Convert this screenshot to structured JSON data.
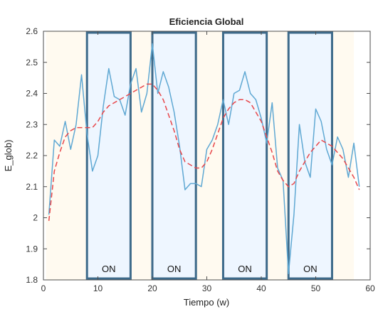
{
  "chart_data": {
    "type": "line",
    "title": "Eficiencia Global",
    "xlabel": "Tiempo (w)",
    "ylabel": "E_glob)",
    "xlim": [
      0,
      60
    ],
    "ylim": [
      1.8,
      2.6
    ],
    "xticks": [
      "0",
      "10",
      "20",
      "30",
      "40",
      "50",
      "60"
    ],
    "yticks": [
      "1.8",
      "1.9",
      "2",
      "2.1",
      "2.2",
      "2.3",
      "2.4",
      "2.5",
      "2.6"
    ],
    "grid": false,
    "colors": {
      "data_line": "#5fa8d3",
      "trend_line": "#e8474b",
      "on_box_border": "#3d6a8a",
      "on_box_fill": "#eef6ff",
      "off_fill": "#fffaf0"
    },
    "series": [
      {
        "x": [
          1,
          2,
          3,
          4,
          5,
          6,
          7,
          8,
          9,
          10,
          11,
          12,
          13,
          14,
          15,
          16,
          17,
          18,
          19,
          20,
          21,
          22,
          23,
          24,
          25,
          26,
          27,
          28,
          29,
          30,
          31,
          32,
          33,
          34,
          35,
          36,
          37,
          38,
          39,
          40,
          41,
          42,
          43,
          44,
          45,
          46,
          47,
          48,
          49,
          50,
          51,
          52,
          53,
          54,
          55,
          56,
          57,
          58
        ],
        "values": [
          2.01,
          2.25,
          2.23,
          2.31,
          2.22,
          2.3,
          2.46,
          2.27,
          2.15,
          2.2,
          2.36,
          2.48,
          2.39,
          2.38,
          2.33,
          2.43,
          2.48,
          2.34,
          2.4,
          2.56,
          2.4,
          2.47,
          2.42,
          2.34,
          2.23,
          2.09,
          2.11,
          2.11,
          2.1,
          2.22,
          2.25,
          2.3,
          2.38,
          2.3,
          2.4,
          2.41,
          2.47,
          2.4,
          2.38,
          2.32,
          2.24,
          2.37,
          2.16,
          2.12,
          1.82,
          2.01,
          2.3,
          2.18,
          2.13,
          2.35,
          2.31,
          2.22,
          2.17,
          2.26,
          2.22,
          2.13,
          2.24,
          2.1
        ]
      },
      {
        "x": [
          1,
          2,
          3,
          4,
          5,
          6,
          7,
          8,
          9,
          10,
          11,
          12,
          13,
          14,
          15,
          16,
          17,
          18,
          19,
          20,
          21,
          22,
          23,
          24,
          25,
          26,
          27,
          28,
          29,
          30,
          31,
          32,
          33,
          34,
          35,
          36,
          37,
          38,
          39,
          40,
          41,
          42,
          43,
          44,
          45,
          46,
          47,
          48,
          49,
          50,
          51,
          52,
          53,
          54,
          55,
          56,
          57,
          58
        ],
        "values": [
          1.99,
          2.15,
          2.21,
          2.26,
          2.28,
          2.29,
          2.29,
          2.29,
          2.29,
          2.31,
          2.34,
          2.36,
          2.37,
          2.38,
          2.39,
          2.4,
          2.41,
          2.42,
          2.43,
          2.43,
          2.41,
          2.38,
          2.33,
          2.28,
          2.22,
          2.18,
          2.17,
          2.16,
          2.16,
          2.18,
          2.22,
          2.27,
          2.32,
          2.35,
          2.37,
          2.38,
          2.38,
          2.37,
          2.34,
          2.31,
          2.26,
          2.21,
          2.15,
          2.12,
          2.1,
          2.11,
          2.15,
          2.18,
          2.21,
          2.23,
          2.25,
          2.24,
          2.23,
          2.21,
          2.19,
          2.16,
          2.13,
          2.09
        ]
      }
    ],
    "on_windows": [
      [
        8,
        16
      ],
      [
        20,
        28
      ],
      [
        33,
        41
      ],
      [
        45,
        53
      ]
    ],
    "on_label": "ON"
  }
}
